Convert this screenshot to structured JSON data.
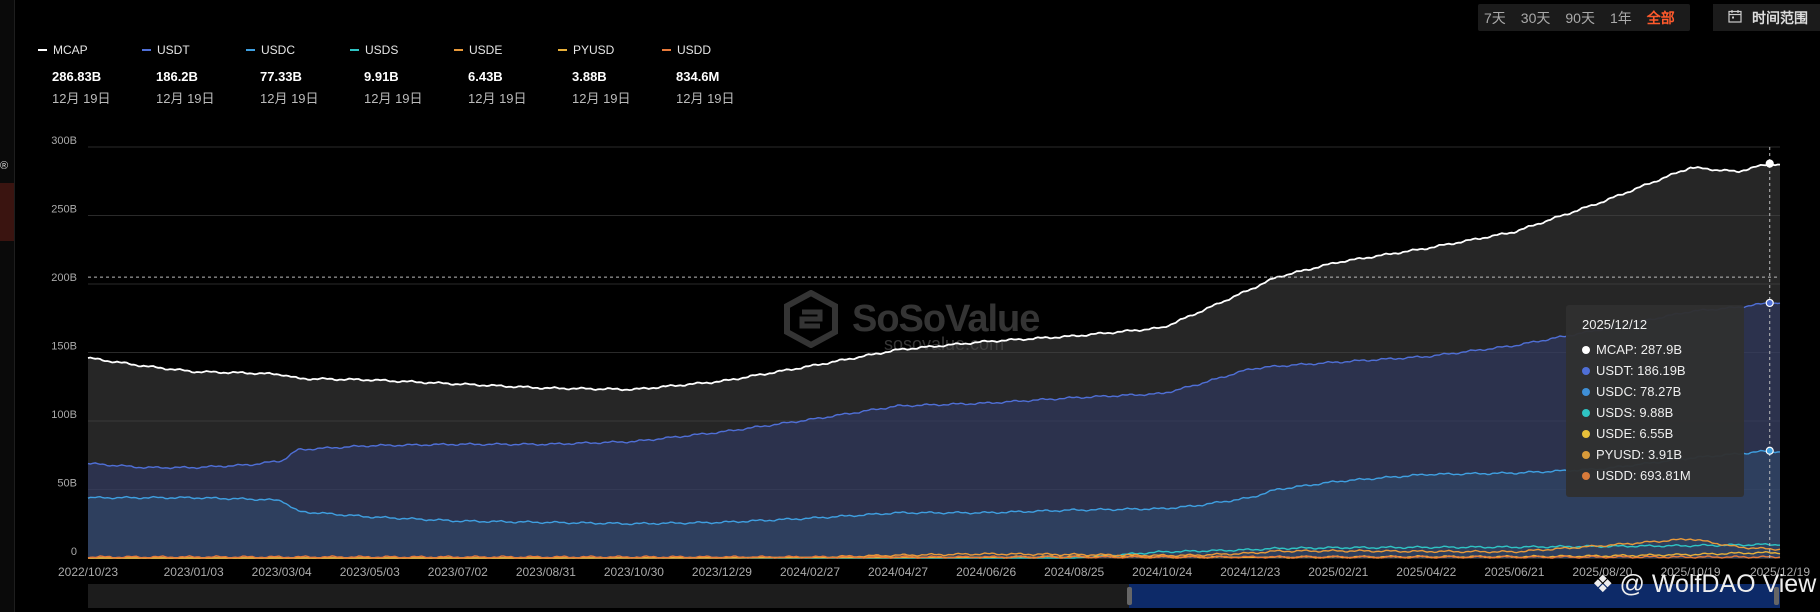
{
  "range_buttons": [
    "7天",
    "30天",
    "90天",
    "1年",
    "全部"
  ],
  "active_range": "全部",
  "time_range_label": "时间范围",
  "legend": [
    {
      "name": "MCAP",
      "value": "286.83B",
      "date": "12月 19日",
      "color": "#ffffff"
    },
    {
      "name": "USDT",
      "value": "186.2B",
      "date": "12月 19日",
      "color": "#4f6fd6"
    },
    {
      "name": "USDC",
      "value": "77.33B",
      "date": "12月 19日",
      "color": "#3f9fe0"
    },
    {
      "name": "USDS",
      "value": "9.91B",
      "date": "12月 19日",
      "color": "#2fc4c4"
    },
    {
      "name": "USDE",
      "value": "6.43B",
      "date": "12月 19日",
      "color": "#e8993a"
    },
    {
      "name": "PYUSD",
      "value": "3.88B",
      "date": "12月 19日",
      "color": "#e8b03a"
    },
    {
      "name": "USDD",
      "value": "834.6M",
      "date": "12月 19日",
      "color": "#e87a3a"
    }
  ],
  "tooltip": {
    "date": "2025/12/12",
    "rows": [
      {
        "text": "MCAP: 287.9B",
        "color": "#ffffff"
      },
      {
        "text": "USDT: 186.19B",
        "color": "#4f6fd6"
      },
      {
        "text": "USDC: 78.27B",
        "color": "#3f8fd6"
      },
      {
        "text": "USDS: 9.88B",
        "color": "#2fc4c4"
      },
      {
        "text": "USDE: 6.55B",
        "color": "#e8c03a"
      },
      {
        "text": "PYUSD: 3.91B",
        "color": "#d89a3a"
      },
      {
        "text": "USDD: 693.81M",
        "color": "#d87a3a"
      }
    ]
  },
  "watermark": {
    "brand": "SoSoValue",
    "domain": "sosovalue.com"
  },
  "signature": "@ WolfDAO View",
  "left_glyph": "®",
  "chart_data": {
    "type": "area",
    "x": [
      "2022/10/23",
      "2022/12/01",
      "2023/01/03",
      "2023/02/10",
      "2023/03/04",
      "2023/03/15",
      "2023/05/03",
      "2023/07/02",
      "2023/08/31",
      "2023/10/30",
      "2023/12/29",
      "2024/02/27",
      "2024/04/27",
      "2024/06/26",
      "2024/08/25",
      "2024/10/24",
      "2024/11/15",
      "2024/12/23",
      "2025/01/10",
      "2025/02/21",
      "2025/04/22",
      "2025/06/21",
      "2025/08/20",
      "2025/10/19",
      "2025/11/20",
      "2025/12/12",
      "2025/12/19"
    ],
    "series": [
      {
        "name": "MCAP",
        "values": [
          146,
          140,
          136,
          135,
          134,
          131,
          130,
          127,
          124,
          123,
          129,
          140,
          152,
          158,
          162,
          168,
          178,
          196,
          205,
          216,
          226,
          238,
          260,
          285,
          282,
          287.9,
          286.83
        ]
      },
      {
        "name": "USDT",
        "values": [
          69,
          66,
          66,
          68,
          71,
          79,
          82,
          83,
          83,
          85,
          92,
          101,
          111,
          113,
          117,
          120,
          126,
          138,
          140,
          143,
          147,
          155,
          167,
          180,
          183,
          186.19,
          186.2
        ]
      },
      {
        "name": "USDC",
        "values": [
          44,
          44,
          44,
          43,
          42,
          34,
          30,
          27,
          26,
          25,
          26,
          29,
          33,
          33,
          35,
          36,
          38,
          44,
          50,
          56,
          61,
          62,
          65,
          73,
          76,
          78.27,
          77.33
        ]
      },
      {
        "name": "USDS",
        "values": [
          0,
          0,
          0,
          0,
          0,
          0,
          0,
          0,
          0,
          0,
          0,
          0,
          0,
          0,
          0,
          4.5,
          5,
          6,
          7,
          7.5,
          7.8,
          8,
          8.5,
          9,
          9.5,
          9.88,
          9.91
        ]
      },
      {
        "name": "USDE",
        "values": [
          0,
          0,
          0,
          0,
          0,
          0,
          0,
          0,
          0,
          0,
          0,
          0.5,
          2,
          3,
          2.5,
          1.8,
          2,
          3.5,
          5,
          5.2,
          4.8,
          4.5,
          9,
          14,
          8,
          6.55,
          6.43
        ]
      },
      {
        "name": "PYUSD",
        "values": [
          0,
          0,
          0,
          0,
          0,
          0,
          0,
          0,
          0,
          0.2,
          0.3,
          0.4,
          0.4,
          0.5,
          1,
          0.8,
          0.7,
          0.5,
          0.6,
          0.7,
          0.9,
          0.9,
          1.5,
          2.5,
          3.5,
          3.91,
          3.88
        ]
      },
      {
        "name": "USDD",
        "values": [
          0.7,
          0.7,
          0.7,
          0.7,
          0.7,
          0.7,
          0.7,
          0.7,
          0.7,
          0.7,
          0.7,
          0.7,
          0.7,
          0.7,
          0.7,
          0.7,
          0.7,
          0.7,
          0.7,
          0.7,
          0.7,
          0.7,
          0.7,
          0.7,
          0.7,
          0.69381,
          0.8346
        ]
      }
    ],
    "x_ticks": [
      "2022/10/23",
      "2023/01/03",
      "2023/03/04",
      "2023/05/03",
      "2023/07/02",
      "2023/08/31",
      "2023/10/30",
      "2023/12/29",
      "2024/02/27",
      "2024/04/27",
      "2024/06/26",
      "2024/08/25",
      "2024/10/24",
      "2024/12/23",
      "2025/02/21",
      "2025/04/22",
      "2025/06/21",
      "2025/08/20",
      "2025/10/19",
      "2025/12/19"
    ],
    "y_ticks": [
      {
        "value": 300,
        "label": "300B"
      },
      {
        "value": 250,
        "label": "250B"
      },
      {
        "value": 200,
        "label": "200B"
      },
      {
        "value": 150,
        "label": "150B"
      },
      {
        "value": 100,
        "label": "100B"
      },
      {
        "value": 50,
        "label": "50B"
      },
      {
        "value": 0,
        "label": "0"
      }
    ],
    "ylim": [
      0,
      300
    ],
    "grid": true,
    "crosshair": {
      "x": "2025/12/12",
      "y": 205
    },
    "colors": {
      "MCAP": "#ffffff",
      "USDT": "#4f6fd6",
      "USDC": "#3f9fe0",
      "USDS": "#2fc4c4",
      "USDE": "#e8993a",
      "PYUSD": "#e8b03a",
      "USDD": "#e87a3a"
    }
  }
}
